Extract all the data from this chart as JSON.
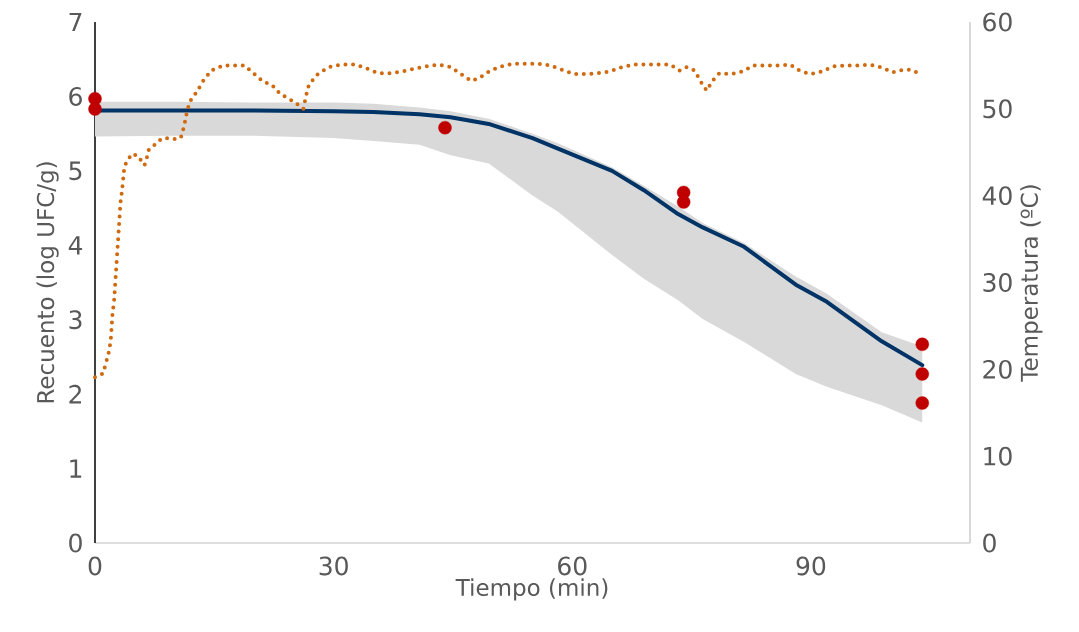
{
  "chart_data": {
    "type": "line",
    "xlabel": "Tiempo (min)",
    "ylabel": "Recuento (log UFC/g)",
    "y2label": "Temperatura (ºC)",
    "xlim": [
      0,
      110
    ],
    "xticks": [
      0,
      30,
      60,
      90
    ],
    "ylim": [
      0,
      7
    ],
    "yticks": [
      0,
      1,
      2,
      3,
      4,
      5,
      6,
      7
    ],
    "y2lim": [
      0,
      60
    ],
    "y2ticks": [
      0,
      10,
      20,
      30,
      40,
      50,
      60
    ],
    "series": [
      {
        "color": "#003366",
        "marker": "none",
        "line_style": "solid",
        "x": [
          0,
          10,
          20,
          30,
          35,
          40.8,
          44.7,
          49.5,
          55,
          58.2,
          65,
          69,
          73.3,
          76.4,
          81.6,
          88.1,
          92,
          98.9,
          104
        ],
        "values": [
          5.81,
          5.81,
          5.81,
          5.8,
          5.79,
          5.76,
          5.72,
          5.63,
          5.44,
          5.3,
          5.0,
          4.74,
          4.42,
          4.24,
          3.98,
          3.47,
          3.24,
          2.71,
          2.39
        ],
        "upper": [
          5.93,
          5.93,
          5.92,
          5.92,
          5.9,
          5.85,
          5.8,
          5.7,
          5.5,
          5.37,
          5.05,
          4.8,
          4.52,
          4.3,
          4.03,
          3.58,
          3.35,
          2.83,
          2.64
        ],
        "lower": [
          5.46,
          5.47,
          5.47,
          5.44,
          5.4,
          5.35,
          5.21,
          5.1,
          4.67,
          4.45,
          3.87,
          3.55,
          3.26,
          3.01,
          2.7,
          2.27,
          2.1,
          1.85,
          1.62
        ]
      },
      {
        "type": "scatter",
        "color": "#c00000",
        "marker": "circle",
        "x": [
          0,
          0,
          44,
          74,
          74,
          104,
          104,
          104
        ],
        "values": [
          5.97,
          5.83,
          5.58,
          4.71,
          4.58,
          2.67,
          2.27,
          1.88
        ]
      },
      {
        "axis": "y2",
        "color": "#d06a10",
        "marker": "none",
        "line_style": "dotted",
        "x": [
          0,
          1,
          1.4,
          1.8,
          2,
          2.1,
          2.2,
          2.4,
          2.6,
          2.8,
          3,
          3.2,
          3.4,
          3.7,
          4.6,
          5.4,
          6.2,
          6.4,
          6.7,
          8.4,
          9.4,
          10.3,
          10.8,
          11.2,
          11.5,
          11.9,
          12.9,
          13.5,
          14.6,
          16.1,
          17.6,
          18.8,
          19.8,
          21.2,
          22.2,
          23.3,
          24.5,
          25.8,
          26.2,
          26.5,
          26.9,
          28.1,
          29.7,
          31.2,
          32.7,
          34,
          35.6,
          37.1,
          38.6,
          40.1,
          41.6,
          43.2,
          44.7,
          46,
          47.3,
          48.4,
          49.7,
          51.1,
          52.6,
          54.2,
          55.7,
          57.2,
          58.7,
          60.2,
          61.7,
          63.2,
          64.7,
          66.2,
          67.7,
          69.2,
          70.7,
          72.3,
          73.5,
          74.4,
          75.4,
          76.1,
          76.9,
          77.6,
          78.5,
          80,
          81.4,
          82.8,
          84.3,
          85.9,
          87.4,
          88.6,
          89.9,
          91.4,
          92.8,
          94.3,
          95.8,
          97.4,
          98.8,
          100.3,
          101.6,
          102.5,
          103.8
        ],
        "values": [
          19.1,
          19.5,
          20.8,
          22.2,
          23.6,
          25,
          26.4,
          27.9,
          30.7,
          33.5,
          36.3,
          39.2,
          40.6,
          43.4,
          44.8,
          44.6,
          43.5,
          43.8,
          45.2,
          46.6,
          46.6,
          46.5,
          46.7,
          48,
          49.4,
          50.8,
          52.1,
          53.1,
          54.4,
          55,
          55,
          55,
          54.2,
          53.1,
          52.8,
          51.7,
          51.1,
          50.3,
          50,
          51.4,
          52.8,
          54.1,
          54.9,
          55.1,
          55.1,
          54.7,
          54.1,
          54.1,
          54.3,
          54.6,
          54.9,
          55.1,
          54.8,
          54,
          53.2,
          53.6,
          54.4,
          54.9,
          55.2,
          55.2,
          55.2,
          55,
          54.5,
          54,
          54,
          54.1,
          54.3,
          54.8,
          55.1,
          55.1,
          55.1,
          55.1,
          54.4,
          54.8,
          54.4,
          53.2,
          52.1,
          53.2,
          54.1,
          54,
          54.3,
          55,
          55,
          55,
          55.1,
          54.4,
          54,
          54.3,
          54.9,
          55,
          55,
          55.1,
          54.8,
          54.2,
          54.5,
          54.5,
          54
        ]
      }
    ]
  }
}
